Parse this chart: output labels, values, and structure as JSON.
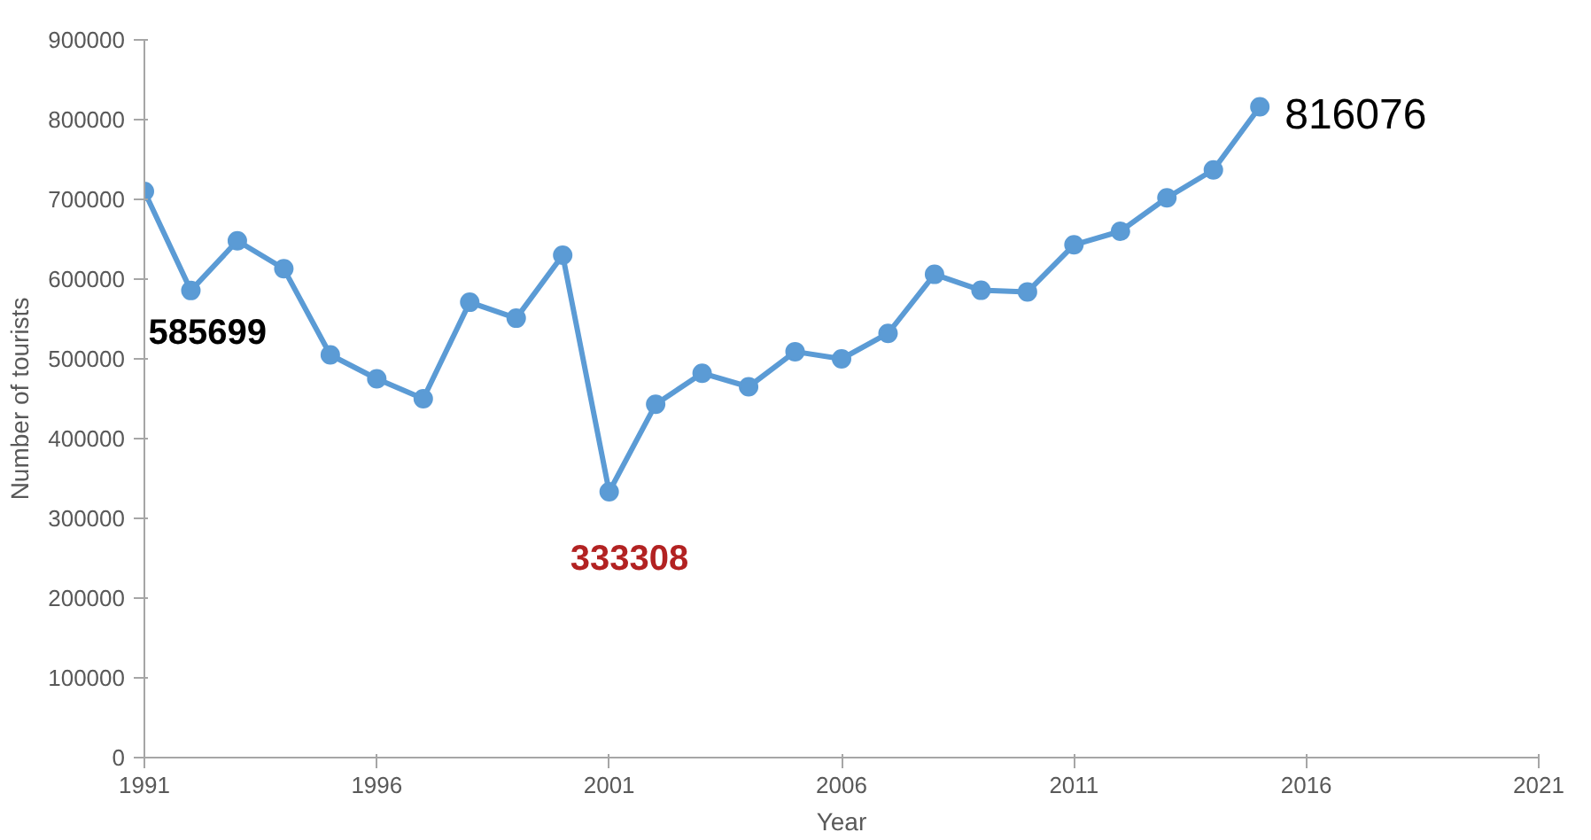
{
  "chart_data": {
    "type": "line",
    "xlabel": "Year",
    "ylabel": "Number of tourists",
    "x": [
      1991,
      1992,
      1993,
      1994,
      1995,
      1996,
      1997,
      1998,
      1999,
      2000,
      2001,
      2002,
      2003,
      2004,
      2005,
      2006,
      2007,
      2008,
      2009,
      2010,
      2011,
      2012,
      2013,
      2014,
      2015
    ],
    "series": [
      {
        "color": "#5b9bd5",
        "values": [
          710000,
          585699,
          648000,
          613000,
          505000,
          475000,
          450000,
          571000,
          551000,
          630000,
          333308,
          443000,
          482000,
          465000,
          509000,
          500000,
          532000,
          606000,
          586000,
          584000,
          643000,
          660000,
          702000,
          737000,
          816076
        ]
      }
    ],
    "xlim": [
      1991,
      2021
    ],
    "xticks": [
      1991,
      1996,
      2001,
      2006,
      2011,
      2016,
      2021
    ],
    "ylim": [
      0,
      900000
    ],
    "yticks": [
      0,
      100000,
      200000,
      300000,
      400000,
      500000,
      600000,
      700000,
      800000,
      900000
    ],
    "grid": false,
    "marker": "circle",
    "line_style": "solid",
    "annotations": [
      {
        "text": "585699",
        "x": 1992,
        "y": 585699
      },
      {
        "text": "333308",
        "x": 2001,
        "y": 333308
      },
      {
        "text": "816076",
        "x": 2015,
        "y": 816076
      }
    ]
  }
}
